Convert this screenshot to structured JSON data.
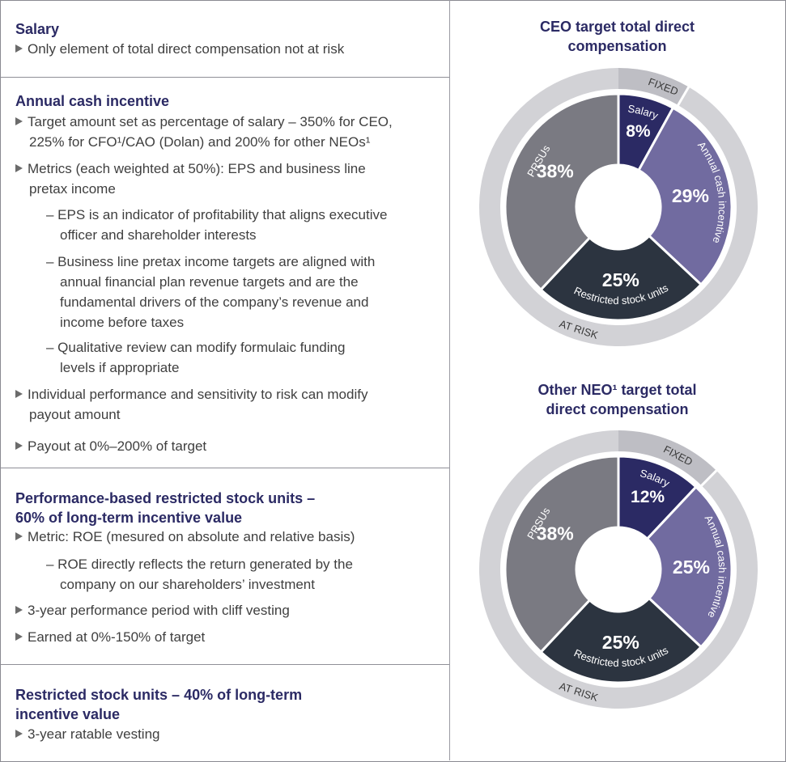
{
  "sections": {
    "salary": {
      "title": "Salary",
      "bullets": [
        "Only element of total direct compensation not at risk"
      ]
    },
    "annual": {
      "title": "Annual cash incentive",
      "b1_l1": "Target amount set as percentage of salary – 350% for CEO,",
      "b1_l2": "225% for CFO¹/CAO (Dolan) and 200% for other NEOs¹",
      "b2_l1": "Metrics (each weighted at 50%): EPS and business line",
      "b2_l2": "pretax income",
      "d1_l1": "– EPS is an indicator of profitability that aligns executive",
      "d1_l2": "officer and shareholder interests",
      "d2_l1": "– Business line pretax income targets are aligned with",
      "d2_l2": "annual financial plan revenue targets and are the",
      "d2_l3": "fundamental drivers of the company’s revenue and",
      "d2_l4": "income before taxes",
      "d3_l1": "– Qualitative review can modify formulaic funding",
      "d3_l2": "levels if appropriate",
      "b3_l1": "Individual performance and sensitivity to risk can modify",
      "b3_l2": "payout amount",
      "b4": "Payout at 0%–200% of target"
    },
    "prsu": {
      "title_l1": "Performance-based restricted stock units –",
      "title_l2": "60% of long-term incentive value",
      "b1": "Metric: ROE (mesured on absolute and relative basis)",
      "d1_l1": "– ROE directly reflects the return generated by the",
      "d1_l2": "company on our shareholders’ investment",
      "b2": "3-year performance period with cliff vesting",
      "b3": "Earned at 0%-150% of target"
    },
    "rsu": {
      "title_l1": "Restricted stock units – 40% of long-term",
      "title_l2": "incentive value",
      "b1": "3-year ratable vesting"
    }
  },
  "chart_data": [
    {
      "type": "pie",
      "title": "CEO target total direct compensation",
      "title_l1": "CEO target total direct",
      "title_l2": "compensation",
      "slices": [
        {
          "label": "Salary",
          "value": 8,
          "display": "8%",
          "color": "#2b2a64"
        },
        {
          "label": "Annual cash incentive",
          "value": 29,
          "display": "29%",
          "color": "#716ba0"
        },
        {
          "label": "Restricted stock units",
          "value": 25,
          "display": "25%",
          "color": "#2c3440"
        },
        {
          "label": "PRSUs",
          "value": 38,
          "display": "38%",
          "color": "#7a7a82"
        }
      ],
      "outer_ring": {
        "fixed_label": "FIXED",
        "at_risk_label": "AT RISK"
      }
    },
    {
      "type": "pie",
      "title": "Other NEO¹ target total direct compensation",
      "title_l1": "Other NEO¹ target total",
      "title_l2": "direct compensation",
      "slices": [
        {
          "label": "Salary",
          "value": 12,
          "display": "12%",
          "color": "#2b2a64"
        },
        {
          "label": "Annual cash incentive",
          "value": 25,
          "display": "25%",
          "color": "#716ba0"
        },
        {
          "label": "Restricted stock units",
          "value": 25,
          "display": "25%",
          "color": "#2c3440"
        },
        {
          "label": "PRSUs",
          "value": 38,
          "display": "38%",
          "color": "#7a7a82"
        }
      ],
      "outer_ring": {
        "fixed_label": "FIXED",
        "at_risk_label": "AT RISK"
      }
    }
  ],
  "colors": {
    "heading": "#2b2a64",
    "ring": "#d2d2d6",
    "ring_fixed": "#bebec4"
  }
}
